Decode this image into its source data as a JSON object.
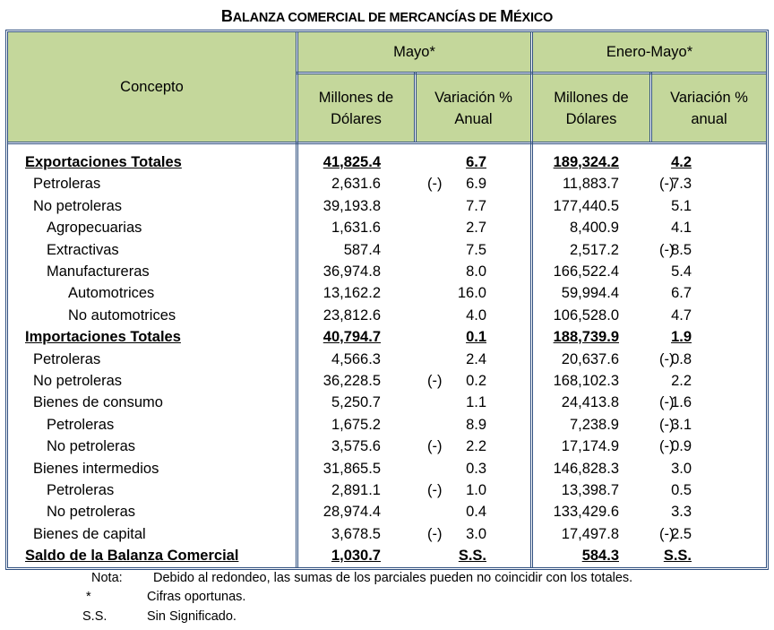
{
  "title": {
    "first": "B",
    "rest": "ALANZA COMERCIAL DE MERCANCÍAS DE ",
    "m": "M",
    "end": "ÉXICO"
  },
  "header": {
    "concepto": "Concepto",
    "mayo": "Mayo*",
    "enero_mayo": "Enero-Mayo*",
    "millones_1": "Millones de Dólares",
    "variacion_1": "Variación % Anual",
    "millones_2": "Millones de Dólares",
    "variacion_2": "Variación % anual"
  },
  "rows": [
    {
      "label": "Exportaciones Totales",
      "level": 0,
      "bold": true,
      "m_val": "41,825.4",
      "m_neg": "",
      "m_var": "6.7",
      "e_val": "189,324.2",
      "e_neg": "",
      "e_var": "4.2"
    },
    {
      "label": "Petroleras",
      "level": 1,
      "bold": false,
      "m_val": "2,631.6",
      "m_neg": "(-)",
      "m_var": "6.9",
      "e_val": "11,883.7",
      "e_neg": "(-)",
      "e_var": "7.3"
    },
    {
      "label": "No petroleras",
      "level": 1,
      "bold": false,
      "m_val": "39,193.8",
      "m_neg": "",
      "m_var": "7.7",
      "e_val": "177,440.5",
      "e_neg": "",
      "e_var": "5.1"
    },
    {
      "label": "Agropecuarias",
      "level": 2,
      "bold": false,
      "m_val": "1,631.6",
      "m_neg": "",
      "m_var": "2.7",
      "e_val": "8,400.9",
      "e_neg": "",
      "e_var": "4.1"
    },
    {
      "label": "Extractivas",
      "level": 2,
      "bold": false,
      "m_val": "587.4",
      "m_neg": "",
      "m_var": "7.5",
      "e_val": "2,517.2",
      "e_neg": "(-)",
      "e_var": "8.5"
    },
    {
      "label": "Manufactureras",
      "level": 2,
      "bold": false,
      "m_val": "36,974.8",
      "m_neg": "",
      "m_var": "8.0",
      "e_val": "166,522.4",
      "e_neg": "",
      "e_var": "5.4"
    },
    {
      "label": "Automotrices",
      "level": 3,
      "bold": false,
      "m_val": "13,162.2",
      "m_neg": "",
      "m_var": "16.0",
      "e_val": "59,994.4",
      "e_neg": "",
      "e_var": "6.7"
    },
    {
      "label": "No automotrices",
      "level": 3,
      "bold": false,
      "m_val": "23,812.6",
      "m_neg": "",
      "m_var": "4.0",
      "e_val": "106,528.0",
      "e_neg": "",
      "e_var": "4.7"
    },
    {
      "label": "Importaciones Totales",
      "level": 0,
      "bold": true,
      "m_val": "40,794.7",
      "m_neg": "",
      "m_var": "0.1",
      "e_val": "188,739.9",
      "e_neg": "",
      "e_var": "1.9"
    },
    {
      "label": "Petroleras",
      "level": 1,
      "bold": false,
      "m_val": "4,566.3",
      "m_neg": "",
      "m_var": "2.4",
      "e_val": "20,637.6",
      "e_neg": "(-)",
      "e_var": "0.8"
    },
    {
      "label": "No petroleras",
      "level": 1,
      "bold": false,
      "m_val": "36,228.5",
      "m_neg": "(-)",
      "m_var": "0.2",
      "e_val": "168,102.3",
      "e_neg": "",
      "e_var": "2.2"
    },
    {
      "label": "Bienes de consumo",
      "level": 1,
      "bold": false,
      "m_val": "5,250.7",
      "m_neg": "",
      "m_var": "1.1",
      "e_val": "24,413.8",
      "e_neg": "(-)",
      "e_var": "1.6"
    },
    {
      "label": "Petroleras",
      "level": 2,
      "bold": false,
      "m_val": "1,675.2",
      "m_neg": "",
      "m_var": "8.9",
      "e_val": "7,238.9",
      "e_neg": "(-)",
      "e_var": "3.1"
    },
    {
      "label": "No petroleras",
      "level": 2,
      "bold": false,
      "m_val": "3,575.6",
      "m_neg": "(-)",
      "m_var": "2.2",
      "e_val": "17,174.9",
      "e_neg": "(-)",
      "e_var": "0.9"
    },
    {
      "label": "Bienes intermedios",
      "level": 1,
      "bold": false,
      "m_val": "31,865.5",
      "m_neg": "",
      "m_var": "0.3",
      "e_val": "146,828.3",
      "e_neg": "",
      "e_var": "3.0"
    },
    {
      "label": "Petroleras",
      "level": 2,
      "bold": false,
      "m_val": "2,891.1",
      "m_neg": "(-)",
      "m_var": "1.0",
      "e_val": "13,398.7",
      "e_neg": "",
      "e_var": "0.5"
    },
    {
      "label": "No petroleras",
      "level": 2,
      "bold": false,
      "m_val": "28,974.4",
      "m_neg": "",
      "m_var": "0.4",
      "e_val": "133,429.6",
      "e_neg": "",
      "e_var": "3.3"
    },
    {
      "label": "Bienes de capital",
      "level": 1,
      "bold": false,
      "m_val": "3,678.5",
      "m_neg": "(-)",
      "m_var": "3.0",
      "e_val": "17,497.8",
      "e_neg": "(-)",
      "e_var": "2.5"
    },
    {
      "label": "Saldo de la Balanza Comercial",
      "level": 0,
      "bold": true,
      "m_val": "1,030.7",
      "m_neg": "",
      "m_var": "S.S.",
      "e_val": "584.3",
      "e_neg": "",
      "e_var": "S.S."
    }
  ],
  "notes": [
    {
      "key": "Nota:",
      "text": "Debido al redondeo, las sumas de los parciales pueden no coincidir con los totales."
    },
    {
      "key": "*",
      "text": "Cifras oportunas."
    },
    {
      "key": "S.S.",
      "text": "Sin Significado."
    }
  ],
  "colors": {
    "header_bg": "#c4d79b",
    "border": "#2f4f7f"
  }
}
